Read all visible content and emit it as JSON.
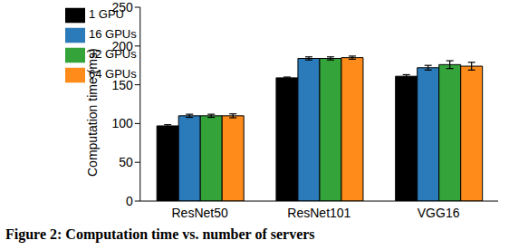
{
  "chart_data": {
    "type": "bar",
    "title": "Figure 2: Computation time vs. number of servers",
    "y_label": "Computation time (ms)",
    "categories": [
      "ResNet50",
      "ResNet101",
      "VGG16"
    ],
    "series": [
      {
        "name": "1 GPU",
        "color": "#000000",
        "values": [
          97,
          159,
          161
        ],
        "errors": [
          1.5,
          1,
          2
        ]
      },
      {
        "name": "16 GPUs",
        "color": "#2b7bba",
        "values": [
          110,
          184,
          172
        ],
        "errors": [
          2,
          2,
          3
        ]
      },
      {
        "name": "32 GPUs",
        "color": "#33a33a",
        "values": [
          110,
          184,
          176
        ],
        "errors": [
          2,
          2,
          5
        ]
      },
      {
        "name": "64 GPUs",
        "color": "#ff8c1a",
        "values": [
          110,
          185,
          174
        ],
        "errors": [
          2.5,
          2,
          5
        ]
      }
    ],
    "ylim": [
      0,
      250
    ],
    "yticks": [
      0,
      50,
      100,
      150,
      200,
      250
    ],
    "grid": false,
    "legend": "upper left"
  }
}
